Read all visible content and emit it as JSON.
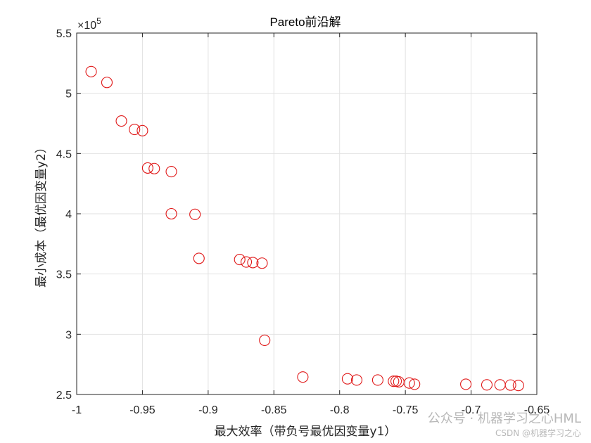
{
  "chart_data": {
    "type": "scatter",
    "title": "Pareto前沿解",
    "xlabel": "最大效率（带负号最优因变量y1）",
    "ylabel": "最小成本（最优因变量y2）",
    "xlim": [
      -1,
      -0.65
    ],
    "ylim": [
      2.5,
      5.5
    ],
    "y_exponent_label": "×10",
    "y_exponent_power": "5",
    "xticks": [
      "-1",
      "-0.95",
      "-0.9",
      "-0.85",
      "-0.8",
      "-0.75",
      "-0.7",
      "-0.65"
    ],
    "yticks": [
      "2.5",
      "3",
      "3.5",
      "4",
      "4.5",
      "5",
      "5.5"
    ],
    "grid": true,
    "marker": "open-circle",
    "marker_color": "#e01818",
    "series": [
      {
        "x": [
          -0.989,
          -0.977,
          -0.966,
          -0.956,
          -0.95,
          -0.946,
          -0.941,
          -0.928,
          -0.928,
          -0.91,
          -0.907,
          -0.876,
          -0.871,
          -0.866,
          -0.859,
          -0.857,
          -0.828,
          -0.794,
          -0.787,
          -0.771,
          -0.759,
          -0.757,
          -0.755,
          -0.747,
          -0.743,
          -0.704,
          -0.688,
          -0.678,
          -0.67,
          -0.664
        ],
        "y": [
          5.18,
          5.09,
          4.77,
          4.7,
          4.69,
          4.38,
          4.375,
          4.35,
          4.0,
          3.995,
          3.63,
          3.62,
          3.6,
          3.595,
          3.59,
          2.95,
          2.645,
          2.63,
          2.62,
          2.62,
          2.61,
          2.61,
          2.605,
          2.595,
          2.585,
          2.585,
          2.58,
          2.58,
          2.578,
          2.575
        ]
      }
    ]
  },
  "watermark": {
    "line1": "公众号 · 机器学习之心HML",
    "line2": "CSDN @机器学习之心"
  }
}
